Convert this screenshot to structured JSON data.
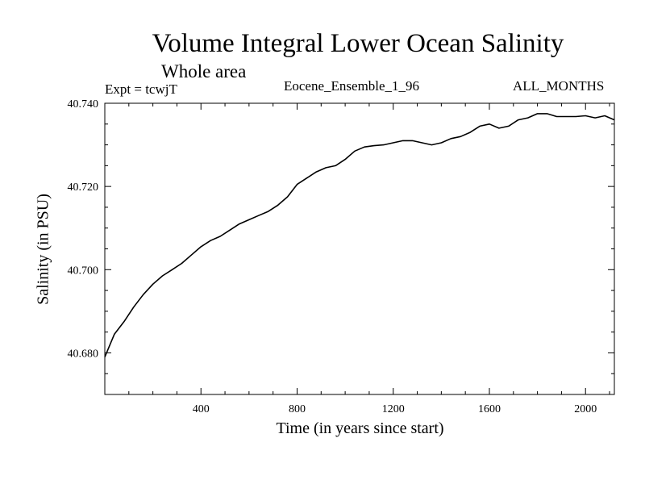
{
  "header": {
    "title": "Volume Integral Lower Ocean Salinity",
    "subtitle": "Whole area",
    "expt": "Expt = tcwjT",
    "run": "Eocene_Ensemble_1_96",
    "months": "ALL_MONTHS"
  },
  "chart_data": {
    "type": "line",
    "title": "Volume Integral Lower Ocean Salinity",
    "subtitle": "Whole area",
    "xlabel": "Time (in years since start)",
    "ylabel": "Salinity (in PSU)",
    "xlim": [
      0,
      2120
    ],
    "ylim": [
      40.67,
      40.74
    ],
    "x_ticks": [
      400,
      800,
      1200,
      1600,
      2000
    ],
    "x_tick_labels": [
      "400",
      "800",
      "1200",
      "1600",
      "2000"
    ],
    "y_ticks": [
      40.68,
      40.7,
      40.72,
      40.74
    ],
    "y_tick_labels": [
      "40.680",
      "40.700",
      "40.720",
      "40.740"
    ],
    "grid": false,
    "series": [
      {
        "color": "#000000",
        "x": [
          0,
          40,
          80,
          120,
          160,
          200,
          240,
          280,
          320,
          360,
          400,
          440,
          480,
          520,
          560,
          600,
          640,
          680,
          720,
          760,
          800,
          840,
          880,
          920,
          960,
          1000,
          1040,
          1080,
          1120,
          1160,
          1200,
          1240,
          1280,
          1320,
          1360,
          1400,
          1440,
          1480,
          1520,
          1560,
          1600,
          1640,
          1680,
          1720,
          1760,
          1800,
          1840,
          1880,
          1920,
          1960,
          2000,
          2040,
          2080,
          2120
        ],
        "y": [
          40.679,
          40.6845,
          40.6875,
          40.691,
          40.694,
          40.6965,
          40.6985,
          40.7,
          40.7015,
          40.7035,
          40.7055,
          40.707,
          40.708,
          40.7095,
          40.711,
          40.712,
          40.713,
          40.714,
          40.7155,
          40.7175,
          40.7205,
          40.722,
          40.7235,
          40.7245,
          40.725,
          40.7265,
          40.7285,
          40.7295,
          40.7298,
          40.73,
          40.7305,
          40.731,
          40.731,
          40.7305,
          40.73,
          40.7305,
          40.7315,
          40.732,
          40.733,
          40.7345,
          40.735,
          40.734,
          40.7345,
          40.736,
          40.7365,
          40.7375,
          40.7375,
          40.7368,
          40.7368,
          40.7368,
          40.737,
          40.7365,
          40.737,
          40.736
        ]
      }
    ]
  }
}
